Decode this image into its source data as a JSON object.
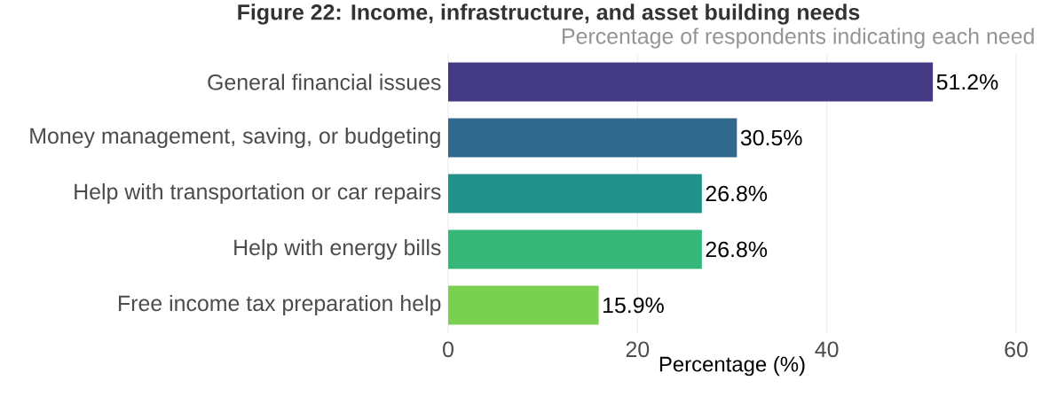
{
  "chart_data": {
    "type": "bar",
    "orientation": "horizontal",
    "title": "Figure 22: Income, infrastructure, and asset building needs",
    "subtitle": "Percentage of respondents indicating each need",
    "xlabel": "Percentage (%)",
    "categories": [
      "General financial issues",
      "Money management, saving, or budgeting",
      "Help with transportation or car repairs",
      "Help with energy bills",
      "Free income tax preparation help"
    ],
    "values": [
      51.2,
      30.5,
      26.8,
      26.8,
      15.9
    ],
    "colors": [
      "#443983",
      "#31688e",
      "#21918c",
      "#35b779",
      "#7ad151"
    ],
    "value_labels": [
      "51.2%",
      "30.5%",
      "26.8%",
      "26.8%",
      "15.9%"
    ],
    "xlim": [
      0,
      60
    ],
    "xticks": [
      0,
      20,
      40,
      60
    ],
    "grid": "x"
  }
}
